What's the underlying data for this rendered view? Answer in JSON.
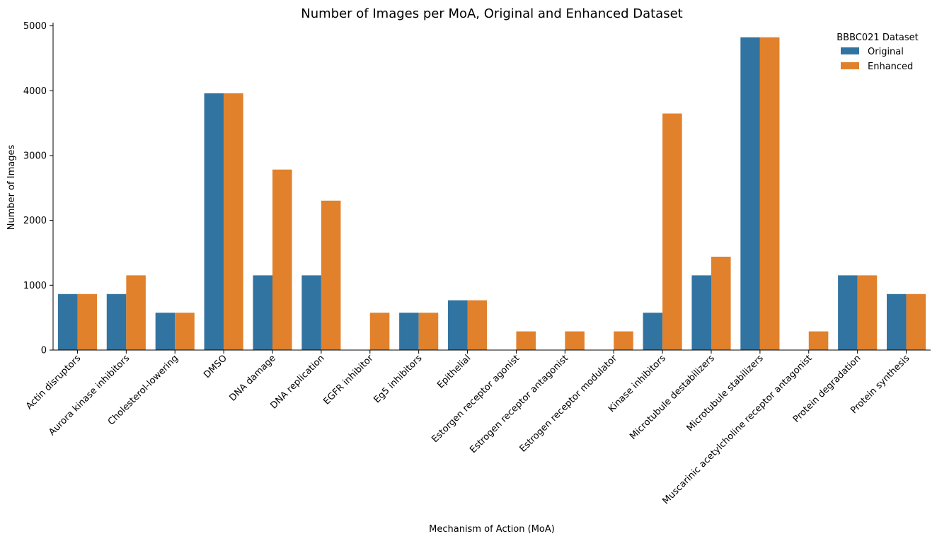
{
  "chart_data": {
    "type": "bar",
    "title": "Number of Images per MoA, Original and Enhanced Dataset",
    "xlabel": "Mechanism of Action (MoA)",
    "ylabel": "Number of Images",
    "ylim": [
      0,
      5050
    ],
    "yticks": [
      0,
      1000,
      2000,
      3000,
      4000,
      5000
    ],
    "yticks_labels": [
      "0",
      "1000",
      "2000",
      "3000",
      "4000",
      "5000"
    ],
    "grid": false,
    "legend": {
      "title": "BBBC021 Dataset",
      "placement": "top-right"
    },
    "categories": [
      "Actin disruptors",
      "Aurora kinase inhibitors",
      "Cholesterol-lowering",
      "DMSO",
      "DNA damage",
      "DNA replication",
      "EGFR inhibitor",
      "Eg5 inhibitors",
      "Epithelial",
      "Estorgen receptor agonist",
      "Estrogen receptor antagonist",
      "Estrogen receptor modulator",
      "Kinase inhibitors",
      "Microtubule destabilizers",
      "Microtubule stabilizers",
      "Muscarinic acetylcholine receptor antagonist",
      "Protein degradation",
      "Protein synthesis"
    ],
    "series": [
      {
        "name": "Original",
        "color": "#3274a1",
        "values": [
          864,
          864,
          576,
          3960,
          1152,
          1152,
          0,
          576,
          768,
          0,
          0,
          0,
          576,
          1152,
          4824,
          0,
          1152,
          864
        ]
      },
      {
        "name": "Enhanced",
        "color": "#e1812c",
        "values": [
          864,
          1152,
          576,
          3960,
          2784,
          2304,
          576,
          576,
          768,
          288,
          288,
          288,
          3648,
          1440,
          4824,
          288,
          1152,
          864
        ]
      }
    ]
  }
}
